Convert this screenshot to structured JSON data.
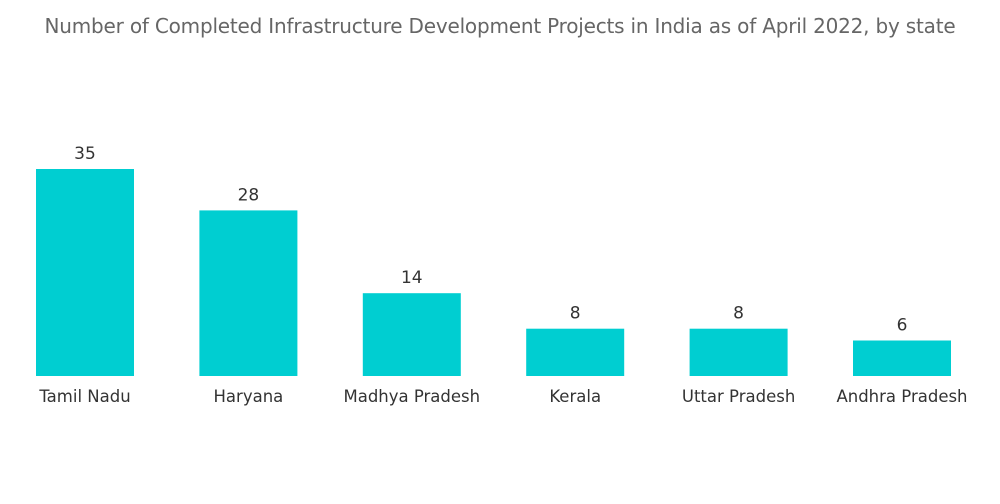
{
  "chart_data": {
    "type": "bar",
    "title": "Number of Completed Infrastructure Development Projects in India as of April 2022, by state",
    "categories": [
      "Tamil Nadu",
      "Haryana",
      "Madhya Pradesh",
      "Kerala",
      "Uttar Pradesh",
      "Andhra Pradesh"
    ],
    "values": [
      35,
      28,
      14,
      8,
      8,
      6
    ],
    "xlabel": "",
    "ylabel": "",
    "ylim": [
      0,
      35
    ],
    "grid": false,
    "legend": "none",
    "bar_color": "#00CED1"
  }
}
